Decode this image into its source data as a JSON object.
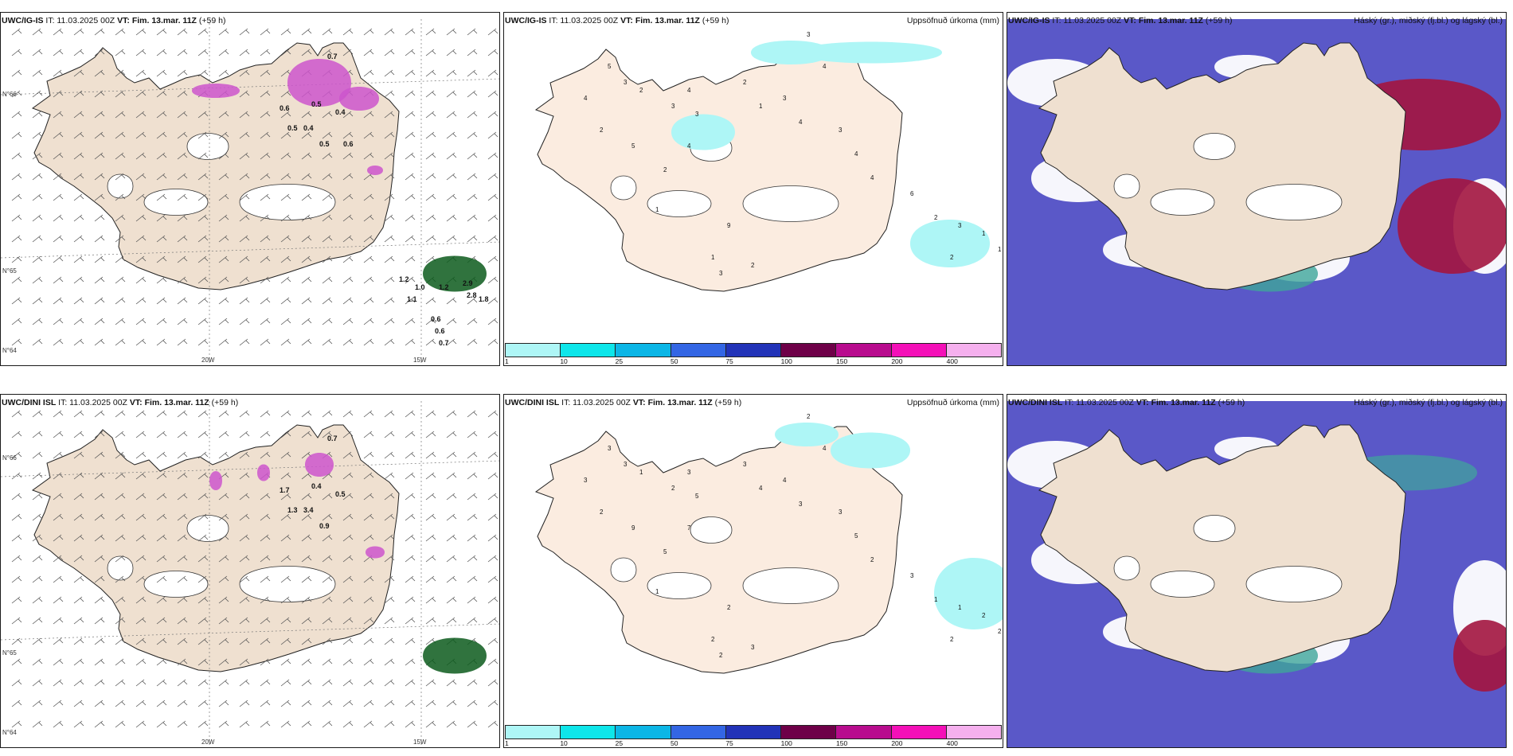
{
  "colors": {
    "land": "#efe0d0",
    "land_light": "#fbece0",
    "precip": "#aef6f6",
    "snow_pink": "#cc55cc",
    "cloud_high": "#5a58c8",
    "cloud_mid": "#3fa69a",
    "cloud_low": "#a3153f",
    "dark_green": "#0c5a1c"
  },
  "colorbar": {
    "labels": [
      "1",
      "10",
      "25",
      "50",
      "75",
      "100",
      "150",
      "200",
      "400"
    ],
    "colors": [
      "#aef6f6",
      "#0ee6ea",
      "#0cb6e6",
      "#3366e4",
      "#2233b8",
      "#6e0048",
      "#b80c8e",
      "#f410b8",
      "#f5b0ee"
    ]
  },
  "panels": [
    {
      "id": "p1",
      "model": "UWC/IG-IS",
      "it": "IT: 11.03.2025 00Z",
      "vt_label": "VT:",
      "vt_value": "Fim. 13.mar. 11Z",
      "lead": "(+59 h)",
      "subtitle": "",
      "kind": "wind",
      "lat_labels": [
        "N°66",
        "N°65",
        "N°64"
      ],
      "lon_labels": [
        "20W",
        "15W"
      ],
      "values": [
        "0.7",
        "0.5",
        "0.4",
        "0.6",
        "0.5",
        "0.4",
        "0.5",
        "0.6",
        "1.2",
        "1.0",
        "1.2",
        "2.9",
        "2.8",
        "1.1",
        "1.8",
        "0.6",
        "0.6",
        "0.7"
      ]
    },
    {
      "id": "p2",
      "model": "UWC/IG-IS",
      "it": "IT: 11.03.2025 00Z",
      "vt_label": "VT:",
      "vt_value": "Fim. 13.mar. 11Z",
      "lead": "(+59 h)",
      "subtitle": "Uppsöfnuð úrkoma (mm)",
      "kind": "precip",
      "values": [
        "3",
        "4",
        "2",
        "1",
        "3",
        "4",
        "3",
        "4",
        "4",
        "2",
        "5",
        "2",
        "1",
        "9",
        "1",
        "2",
        "3",
        "3",
        "4",
        "4",
        "6",
        "2",
        "3",
        "1",
        "1",
        "2",
        "5",
        "3",
        "2",
        "3",
        "4"
      ]
    },
    {
      "id": "p3",
      "model": "UWC/IG-IS",
      "it": "IT: 11.03.2025 00Z",
      "vt_label": "VT:",
      "vt_value": "Fim. 13.mar. 11Z",
      "lead": "(+59 h)",
      "subtitle": "Háský (gr.), miðský (fj.bl.) og lágský (bl.)",
      "kind": "cloud"
    },
    {
      "id": "p4",
      "model": "UWC/DINI ISL",
      "it": "IT: 11.03.2025 00Z",
      "vt_label": "VT:",
      "vt_value": "Fim. 13.mar. 11Z",
      "lead": "(+59 h)",
      "subtitle": "",
      "kind": "wind",
      "lat_labels": [
        "N°66",
        "N°65",
        "N°64"
      ],
      "lon_labels": [
        "20W",
        "15W"
      ],
      "values": [
        "0.7",
        "0.4",
        "0.5",
        "1.7",
        "1.3",
        "3.4",
        "0.9"
      ]
    },
    {
      "id": "p5",
      "model": "UWC/DINI ISL",
      "it": "IT: 11.03.2025 00Z",
      "vt_label": "VT:",
      "vt_value": "Fim. 13.mar. 11Z",
      "lead": "(+59 h)",
      "subtitle": "Uppsöfnuð úrkoma (mm)",
      "kind": "precip",
      "values": [
        "2",
        "4",
        "3",
        "4",
        "4",
        "3",
        "5",
        "7",
        "3",
        "2",
        "9",
        "5",
        "1",
        "2",
        "2",
        "3",
        "2",
        "3",
        "5",
        "2",
        "3",
        "1",
        "1",
        "2",
        "2",
        "2",
        "3",
        "3",
        "1",
        "2",
        "3"
      ]
    },
    {
      "id": "p6",
      "model": "UWC/DINI ISL",
      "it": "IT: 11.03.2025 00Z",
      "vt_label": "VT:",
      "vt_value": "Fim. 13.mar. 11Z",
      "lead": "(+59 h)",
      "subtitle": "Háský (gr.), miðský (fj.bl.) og lágský (bl.)",
      "kind": "cloud"
    }
  ]
}
